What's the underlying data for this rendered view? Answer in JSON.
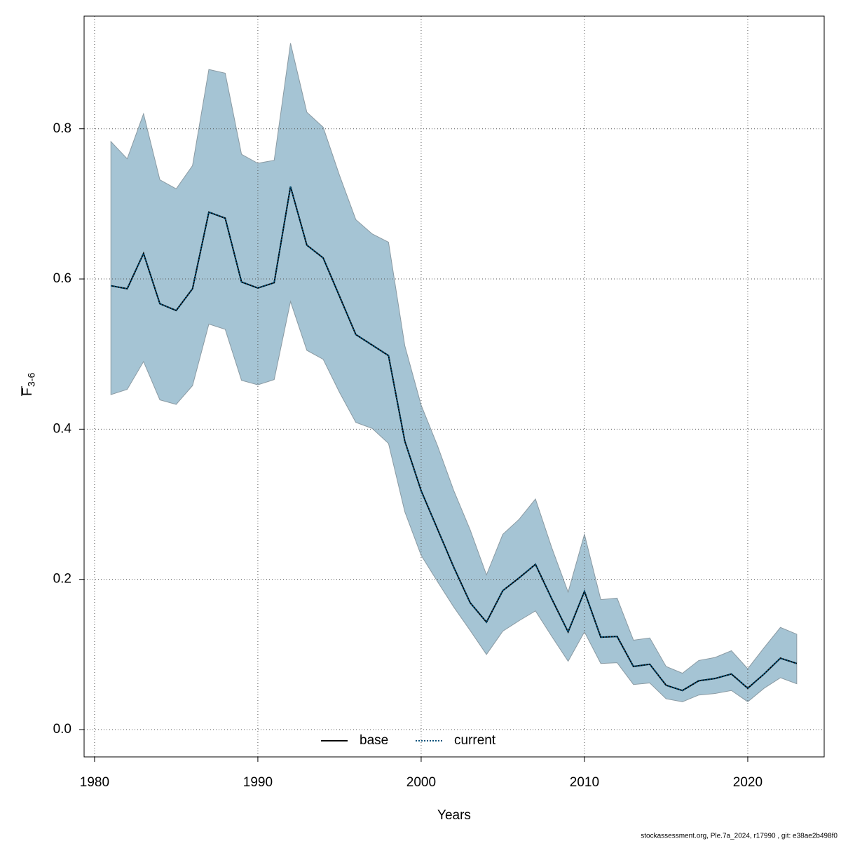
{
  "chart_data": {
    "type": "line",
    "xlabel": "Years",
    "ylabel": {
      "main": "F",
      "sub": "3-6"
    },
    "footer": "stockassessment.org, Ple.7a_2024, r17990 , git: e38ae2b498f0",
    "x": [
      1981,
      1982,
      1983,
      1984,
      1985,
      1986,
      1987,
      1988,
      1989,
      1990,
      1991,
      1992,
      1993,
      1994,
      1995,
      1996,
      1997,
      1998,
      1999,
      2000,
      2001,
      2002,
      2003,
      2004,
      2005,
      2006,
      2007,
      2008,
      2009,
      2010,
      2011,
      2012,
      2013,
      2014,
      2015,
      2016,
      2017,
      2018,
      2019,
      2020,
      2021,
      2022,
      2023
    ],
    "series": [
      {
        "name": "base",
        "color": "#000000",
        "dash": "solid",
        "values": [
          0.591,
          0.587,
          0.634,
          0.567,
          0.558,
          0.587,
          0.689,
          0.681,
          0.596,
          0.588,
          0.595,
          0.723,
          0.645,
          0.628,
          0.577,
          0.526,
          0.512,
          0.498,
          0.384,
          0.318,
          0.267,
          0.216,
          0.169,
          0.143,
          0.185,
          0.202,
          0.22,
          0.174,
          0.13,
          0.184,
          0.123,
          0.124,
          0.084,
          0.087,
          0.059,
          0.052,
          0.065,
          0.068,
          0.074,
          0.055,
          0.074,
          0.095,
          0.088
        ]
      },
      {
        "name": "current",
        "color": "#00517a",
        "dash": "dotted",
        "values": [
          0.591,
          0.587,
          0.634,
          0.567,
          0.558,
          0.587,
          0.689,
          0.681,
          0.596,
          0.588,
          0.595,
          0.723,
          0.645,
          0.628,
          0.577,
          0.526,
          0.512,
          0.498,
          0.384,
          0.318,
          0.267,
          0.216,
          0.169,
          0.143,
          0.185,
          0.202,
          0.22,
          0.174,
          0.13,
          0.184,
          0.123,
          0.124,
          0.084,
          0.087,
          0.059,
          0.052,
          0.065,
          0.068,
          0.074,
          0.055,
          0.074,
          0.095,
          0.088
        ]
      }
    ],
    "band": {
      "color": "#a5c4d4",
      "upper": [
        0.783,
        0.76,
        0.82,
        0.732,
        0.72,
        0.751,
        0.879,
        0.874,
        0.766,
        0.754,
        0.758,
        0.914,
        0.822,
        0.802,
        0.738,
        0.679,
        0.66,
        0.649,
        0.511,
        0.432,
        0.378,
        0.318,
        0.266,
        0.206,
        0.26,
        0.28,
        0.307,
        0.242,
        0.183,
        0.26,
        0.173,
        0.175,
        0.119,
        0.122,
        0.084,
        0.075,
        0.092,
        0.096,
        0.105,
        0.081,
        0.109,
        0.136,
        0.127
      ],
      "lower": [
        0.446,
        0.453,
        0.49,
        0.439,
        0.433,
        0.458,
        0.54,
        0.533,
        0.465,
        0.459,
        0.466,
        0.57,
        0.505,
        0.493,
        0.449,
        0.409,
        0.401,
        0.381,
        0.29,
        0.232,
        0.197,
        0.163,
        0.132,
        0.1,
        0.131,
        0.145,
        0.158,
        0.124,
        0.091,
        0.13,
        0.088,
        0.089,
        0.06,
        0.062,
        0.041,
        0.037,
        0.046,
        0.048,
        0.052,
        0.037,
        0.055,
        0.069,
        0.061
      ]
    },
    "xlim": [
      1979.36,
      2024.68
    ],
    "ylim": [
      -0.0364,
      0.95
    ],
    "xticks": [
      1980,
      1990,
      2000,
      2010,
      2020
    ],
    "yticks": [
      {
        "value": 0,
        "label": "0.0"
      },
      0.2,
      0.4,
      0.6,
      0.8
    ],
    "grid": true,
    "legend": "bottom"
  }
}
